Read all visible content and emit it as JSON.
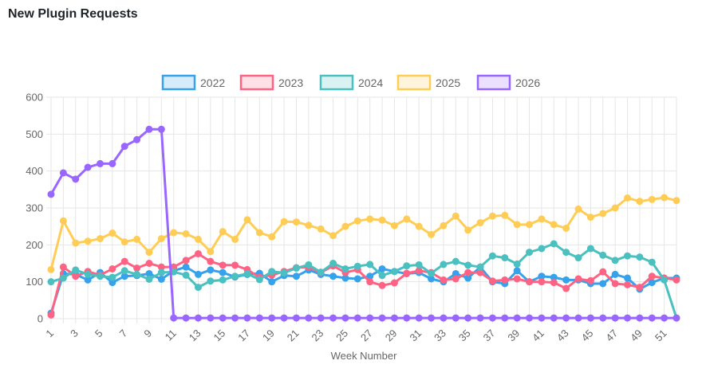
{
  "page": {
    "title": "New Plugin Requests"
  },
  "chart_data": {
    "type": "line",
    "title": "New Plugin Requests",
    "xlabel": "Week Number",
    "ylabel": "",
    "ylim": [
      0,
      600
    ],
    "yticks": [
      0,
      100,
      200,
      300,
      400,
      500,
      600
    ],
    "grid": true,
    "legend_position": "top",
    "x": [
      1,
      2,
      3,
      4,
      5,
      6,
      7,
      8,
      9,
      10,
      11,
      12,
      13,
      14,
      15,
      16,
      17,
      18,
      19,
      20,
      21,
      22,
      23,
      24,
      25,
      26,
      27,
      28,
      29,
      30,
      31,
      32,
      33,
      34,
      35,
      36,
      37,
      38,
      39,
      40,
      41,
      42,
      43,
      44,
      45,
      46,
      47,
      48,
      49,
      50,
      51,
      52
    ],
    "xtick_labels": [
      "1",
      "3",
      "5",
      "7",
      "9",
      "11",
      "13",
      "15",
      "17",
      "19",
      "21",
      "23",
      "25",
      "27",
      "29",
      "31",
      "33",
      "35",
      "37",
      "39",
      "41",
      "43",
      "45",
      "47",
      "49",
      "51"
    ],
    "series": [
      {
        "name": "2022",
        "color": "#36a2eb",
        "values": [
          15,
          122,
          120,
          105,
          125,
          98,
          115,
          117,
          122,
          107,
          130,
          140,
          120,
          132,
          125,
          113,
          120,
          123,
          100,
          117,
          115,
          132,
          120,
          115,
          110,
          108,
          115,
          135,
          128,
          122,
          125,
          108,
          100,
          122,
          110,
          140,
          100,
          95,
          130,
          100,
          115,
          112,
          105,
          105,
          95,
          95,
          120,
          110,
          80,
          98,
          110,
          110
        ]
      },
      {
        "name": "2023",
        "color": "#ff6384",
        "values": [
          10,
          140,
          115,
          128,
          118,
          135,
          155,
          137,
          150,
          140,
          140,
          158,
          176,
          155,
          145,
          145,
          133,
          112,
          118,
          128,
          138,
          140,
          125,
          143,
          125,
          133,
          100,
          90,
          97,
          123,
          130,
          125,
          105,
          108,
          125,
          125,
          102,
          105,
          108,
          100,
          100,
          98,
          82,
          108,
          103,
          127,
          95,
          92,
          85,
          115,
          110,
          105
        ]
      },
      {
        "name": "2024",
        "color": "#4bc0c0",
        "values": [
          100,
          110,
          132,
          120,
          115,
          112,
          130,
          120,
          107,
          125,
          127,
          118,
          85,
          102,
          105,
          115,
          122,
          106,
          128,
          124,
          137,
          146,
          126,
          150,
          135,
          142,
          147,
          117,
          128,
          143,
          146,
          123,
          147,
          155,
          145,
          140,
          170,
          165,
          148,
          180,
          190,
          203,
          180,
          165,
          190,
          172,
          158,
          170,
          167,
          153,
          105,
          2
        ]
      },
      {
        "name": "2025",
        "color": "#ffcd56",
        "values": [
          133,
          265,
          205,
          210,
          217,
          232,
          208,
          215,
          180,
          217,
          233,
          230,
          215,
          182,
          236,
          215,
          268,
          233,
          222,
          263,
          262,
          253,
          243,
          225,
          250,
          265,
          270,
          267,
          252,
          270,
          250,
          228,
          252,
          278,
          240,
          260,
          278,
          280,
          255,
          255,
          270,
          255,
          245,
          297,
          275,
          285,
          300,
          327,
          318,
          323,
          328,
          320
        ]
      },
      {
        "name": "2026",
        "color": "#9966ff",
        "values": [
          337,
          395,
          378,
          410,
          420,
          420,
          467,
          485,
          513,
          513,
          2,
          2,
          2,
          2,
          2,
          2,
          2,
          2,
          2,
          2,
          2,
          2,
          2,
          2,
          2,
          2,
          2,
          2,
          2,
          2,
          2,
          2,
          2,
          2,
          2,
          2,
          2,
          2,
          2,
          2,
          2,
          2,
          2,
          2,
          2,
          2,
          2,
          2,
          2,
          2,
          2,
          2
        ]
      }
    ]
  }
}
